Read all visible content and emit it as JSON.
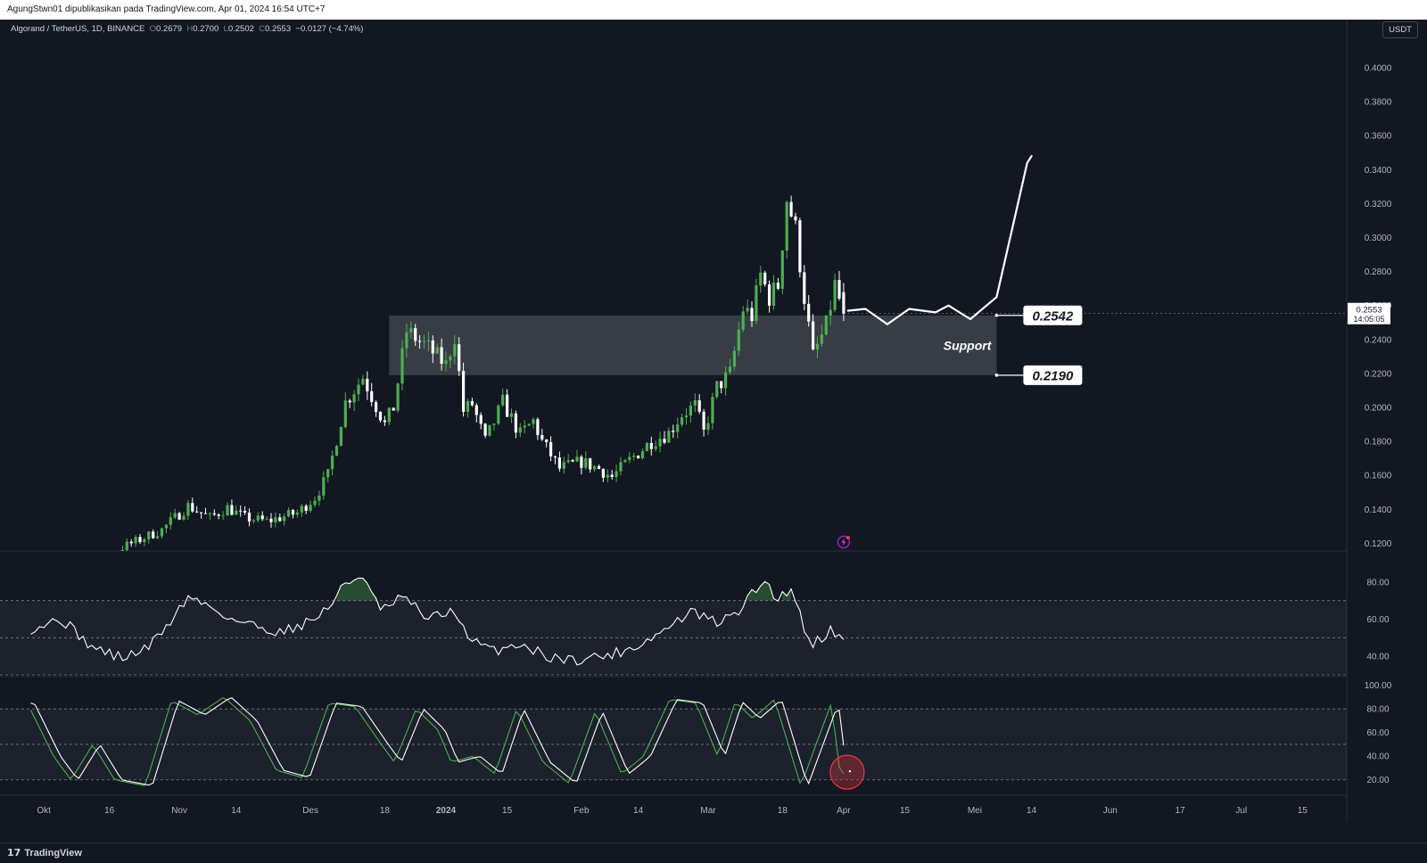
{
  "header": {
    "publish_text": "AgungStwn01 dipublikasikan pada TradingView.com, Apr 01, 2024 16:54 UTC+7"
  },
  "legend": {
    "symbol": "Algorand / TetherUS, 1D, BINANCE",
    "o_label": "O",
    "o_value": "0.2679",
    "h_label": "H",
    "h_value": "0.2700",
    "l_label": "L",
    "l_value": "0.2502",
    "c_label": "C",
    "c_value": "0.2553",
    "change": "−0.0127 (−4.74%)"
  },
  "currency_button": "USDT",
  "price_tag": {
    "value": "0.2553",
    "countdown": "14:05:05"
  },
  "footer": {
    "brand": "TradingView",
    "logo_glyph": "17"
  },
  "colors": {
    "bull": "#4caf50",
    "bear": "#ffffff",
    "background": "#131722",
    "zone": "#ffffff"
  },
  "chart_data": [
    {
      "type": "candlestick",
      "name": "Algorand / TetherUS, 1D, BINANCE",
      "y_ticks": [
        "0.4000",
        "0.3800",
        "0.3600",
        "0.3400",
        "0.3200",
        "0.3000",
        "0.2800",
        "0.2600",
        "0.2400",
        "0.2200",
        "0.2000",
        "0.1800",
        "0.1600",
        "0.1400",
        "0.1200"
      ],
      "ylim": [
        0.1155,
        0.41
      ],
      "x_ticks": [
        "Okt",
        "16",
        "Nov",
        "14",
        "Des",
        "18",
        "2024",
        "15",
        "Feb",
        "14",
        "Mar",
        "18",
        "Apr",
        "15",
        "Mei",
        "14",
        "Jun",
        "17",
        "Jul",
        "15"
      ],
      "x_ticks_bold": [
        "2024"
      ],
      "keypoints_close": [
        {
          "date": "2023-09-28",
          "close": 0.109
        },
        {
          "date": "2023-10-15",
          "close": 0.113
        },
        {
          "date": "2023-10-28",
          "close": 0.128
        },
        {
          "date": "2023-11-03",
          "close": 0.142
        },
        {
          "date": "2023-11-08",
          "close": 0.135
        },
        {
          "date": "2023-11-12",
          "close": 0.141
        },
        {
          "date": "2023-11-16",
          "close": 0.135
        },
        {
          "date": "2023-11-21",
          "close": 0.133
        },
        {
          "date": "2023-11-28",
          "close": 0.138
        },
        {
          "date": "2023-12-02",
          "close": 0.147
        },
        {
          "date": "2023-12-05",
          "close": 0.16
        },
        {
          "date": "2023-12-09",
          "close": 0.203
        },
        {
          "date": "2023-12-13",
          "close": 0.218
        },
        {
          "date": "2023-12-18",
          "close": 0.19
        },
        {
          "date": "2023-12-20",
          "close": 0.2
        },
        {
          "date": "2023-12-23",
          "close": 0.245
        },
        {
          "date": "2023-12-28",
          "close": 0.235
        },
        {
          "date": "2024-01-01",
          "close": 0.225
        },
        {
          "date": "2024-01-03",
          "close": 0.242
        },
        {
          "date": "2024-01-05",
          "close": 0.198
        },
        {
          "date": "2024-01-07",
          "close": 0.202
        },
        {
          "date": "2024-01-10",
          "close": 0.18
        },
        {
          "date": "2024-01-14",
          "close": 0.203
        },
        {
          "date": "2024-01-18",
          "close": 0.184
        },
        {
          "date": "2024-01-21",
          "close": 0.192
        },
        {
          "date": "2024-01-23",
          "close": 0.18
        },
        {
          "date": "2024-01-27",
          "close": 0.164
        },
        {
          "date": "2024-02-01",
          "close": 0.168
        },
        {
          "date": "2024-02-05",
          "close": 0.164
        },
        {
          "date": "2024-02-08",
          "close": 0.159
        },
        {
          "date": "2024-02-12",
          "close": 0.169
        },
        {
          "date": "2024-02-17",
          "close": 0.18
        },
        {
          "date": "2024-02-21",
          "close": 0.185
        },
        {
          "date": "2024-02-24",
          "close": 0.196
        },
        {
          "date": "2024-02-27",
          "close": 0.201
        },
        {
          "date": "2024-02-29",
          "close": 0.185
        },
        {
          "date": "2024-03-03",
          "close": 0.212
        },
        {
          "date": "2024-03-06",
          "close": 0.22
        },
        {
          "date": "2024-03-09",
          "close": 0.258
        },
        {
          "date": "2024-03-11",
          "close": 0.254
        },
        {
          "date": "2024-03-13",
          "close": 0.278
        },
        {
          "date": "2024-03-15",
          "close": 0.265
        },
        {
          "date": "2024-03-17",
          "close": 0.272
        },
        {
          "date": "2024-03-19",
          "close": 0.323
        },
        {
          "date": "2024-03-21",
          "close": 0.305
        },
        {
          "date": "2024-03-23",
          "close": 0.265
        },
        {
          "date": "2024-03-25",
          "close": 0.23
        },
        {
          "date": "2024-03-28",
          "close": 0.248
        },
        {
          "date": "2024-03-30",
          "close": 0.272
        },
        {
          "date": "2024-04-01",
          "close": 0.2553
        }
      ],
      "zone": {
        "label": "Support",
        "top": 0.2542,
        "bottom": 0.219,
        "from": "2023-12-19",
        "to": "2024-05-06"
      },
      "zone_labels": [
        "0.2542",
        "0.2190"
      ],
      "projection": [
        {
          "date": "2024-04-02",
          "value": 0.257
        },
        {
          "date": "2024-04-06",
          "value": 0.258
        },
        {
          "date": "2024-04-11",
          "value": 0.249
        },
        {
          "date": "2024-04-16",
          "value": 0.258
        },
        {
          "date": "2024-04-22",
          "value": 0.256
        },
        {
          "date": "2024-04-25",
          "value": 0.26
        },
        {
          "date": "2024-04-30",
          "value": 0.252
        },
        {
          "date": "2024-05-06",
          "value": 0.265
        },
        {
          "date": "2024-05-10",
          "value": 0.31
        },
        {
          "date": "2024-05-13",
          "value": 0.344
        },
        {
          "date": "2024-05-14",
          "value": 0.348
        }
      ],
      "event_icon": "lightning-icon"
    },
    {
      "type": "line",
      "name": "RSI",
      "y_ticks": [
        "80.00",
        "60.00",
        "40.00"
      ],
      "ylim": [
        30,
        90
      ],
      "bands": [
        70,
        50,
        30
      ],
      "keypoints": [
        {
          "date": "2023-09-28",
          "value": 55
        },
        {
          "date": "2023-10-05",
          "value": 60
        },
        {
          "date": "2023-10-12",
          "value": 45
        },
        {
          "date": "2023-10-19",
          "value": 39
        },
        {
          "date": "2023-10-25",
          "value": 45
        },
        {
          "date": "2023-10-30",
          "value": 59
        },
        {
          "date": "2023-11-03",
          "value": 72
        },
        {
          "date": "2023-11-08",
          "value": 67
        },
        {
          "date": "2023-11-13",
          "value": 60
        },
        {
          "date": "2023-11-19",
          "value": 56
        },
        {
          "date": "2023-11-24",
          "value": 53
        },
        {
          "date": "2023-12-01",
          "value": 59
        },
        {
          "date": "2023-12-05",
          "value": 66
        },
        {
          "date": "2023-12-09",
          "value": 79
        },
        {
          "date": "2023-12-13",
          "value": 84
        },
        {
          "date": "2023-12-17",
          "value": 64
        },
        {
          "date": "2023-12-22",
          "value": 72
        },
        {
          "date": "2023-12-28",
          "value": 60
        },
        {
          "date": "2024-01-03",
          "value": 65
        },
        {
          "date": "2024-01-06",
          "value": 49
        },
        {
          "date": "2024-01-12",
          "value": 43
        },
        {
          "date": "2024-01-18",
          "value": 47
        },
        {
          "date": "2024-01-24",
          "value": 40
        },
        {
          "date": "2024-01-30",
          "value": 38
        },
        {
          "date": "2024-02-08",
          "value": 41
        },
        {
          "date": "2024-02-14",
          "value": 46
        },
        {
          "date": "2024-02-20",
          "value": 54
        },
        {
          "date": "2024-02-26",
          "value": 64
        },
        {
          "date": "2024-03-03",
          "value": 58
        },
        {
          "date": "2024-03-07",
          "value": 62
        },
        {
          "date": "2024-03-12",
          "value": 76
        },
        {
          "date": "2024-03-14",
          "value": 81
        },
        {
          "date": "2024-03-17",
          "value": 70
        },
        {
          "date": "2024-03-20",
          "value": 78
        },
        {
          "date": "2024-03-23",
          "value": 55
        },
        {
          "date": "2024-03-25",
          "value": 47
        },
        {
          "date": "2024-03-29",
          "value": 54
        },
        {
          "date": "2024-04-01",
          "value": 49
        }
      ]
    },
    {
      "type": "line",
      "name": "Stoch RSI",
      "y_ticks": [
        "100.00",
        "80.00",
        "60.00",
        "40.00",
        "20.00"
      ],
      "ylim": [
        10,
        102
      ],
      "bands": [
        80,
        50,
        20
      ],
      "series_colors": [
        "#4caf50",
        "#ffffff"
      ],
      "keypoints": [
        {
          "date": "2023-09-28",
          "value": 85
        },
        {
          "date": "2023-10-04",
          "value": 40
        },
        {
          "date": "2023-10-08",
          "value": 20
        },
        {
          "date": "2023-10-13",
          "value": 50
        },
        {
          "date": "2023-10-18",
          "value": 20
        },
        {
          "date": "2023-10-25",
          "value": 15
        },
        {
          "date": "2023-10-31",
          "value": 87
        },
        {
          "date": "2023-11-06",
          "value": 75
        },
        {
          "date": "2023-11-12",
          "value": 90
        },
        {
          "date": "2023-11-18",
          "value": 70
        },
        {
          "date": "2023-11-24",
          "value": 28
        },
        {
          "date": "2023-11-30",
          "value": 22
        },
        {
          "date": "2023-12-06",
          "value": 85
        },
        {
          "date": "2023-12-12",
          "value": 82
        },
        {
          "date": "2023-12-18",
          "value": 50
        },
        {
          "date": "2023-12-21",
          "value": 35
        },
        {
          "date": "2023-12-26",
          "value": 80
        },
        {
          "date": "2023-12-31",
          "value": 62
        },
        {
          "date": "2024-01-03",
          "value": 35
        },
        {
          "date": "2024-01-08",
          "value": 40
        },
        {
          "date": "2024-01-13",
          "value": 25
        },
        {
          "date": "2024-01-18",
          "value": 80
        },
        {
          "date": "2024-01-24",
          "value": 35
        },
        {
          "date": "2024-01-30",
          "value": 17
        },
        {
          "date": "2024-02-05",
          "value": 78
        },
        {
          "date": "2024-02-11",
          "value": 25
        },
        {
          "date": "2024-02-16",
          "value": 40
        },
        {
          "date": "2024-02-22",
          "value": 88
        },
        {
          "date": "2024-02-28",
          "value": 85
        },
        {
          "date": "2024-03-04",
          "value": 40
        },
        {
          "date": "2024-03-08",
          "value": 86
        },
        {
          "date": "2024-03-12",
          "value": 72
        },
        {
          "date": "2024-03-17",
          "value": 88
        },
        {
          "date": "2024-03-23",
          "value": 15
        },
        {
          "date": "2024-03-27",
          "value": 55
        },
        {
          "date": "2024-03-30",
          "value": 85
        },
        {
          "date": "2024-04-01",
          "value": 25
        }
      ],
      "highlight_circle_date": "2024-04-01"
    }
  ]
}
